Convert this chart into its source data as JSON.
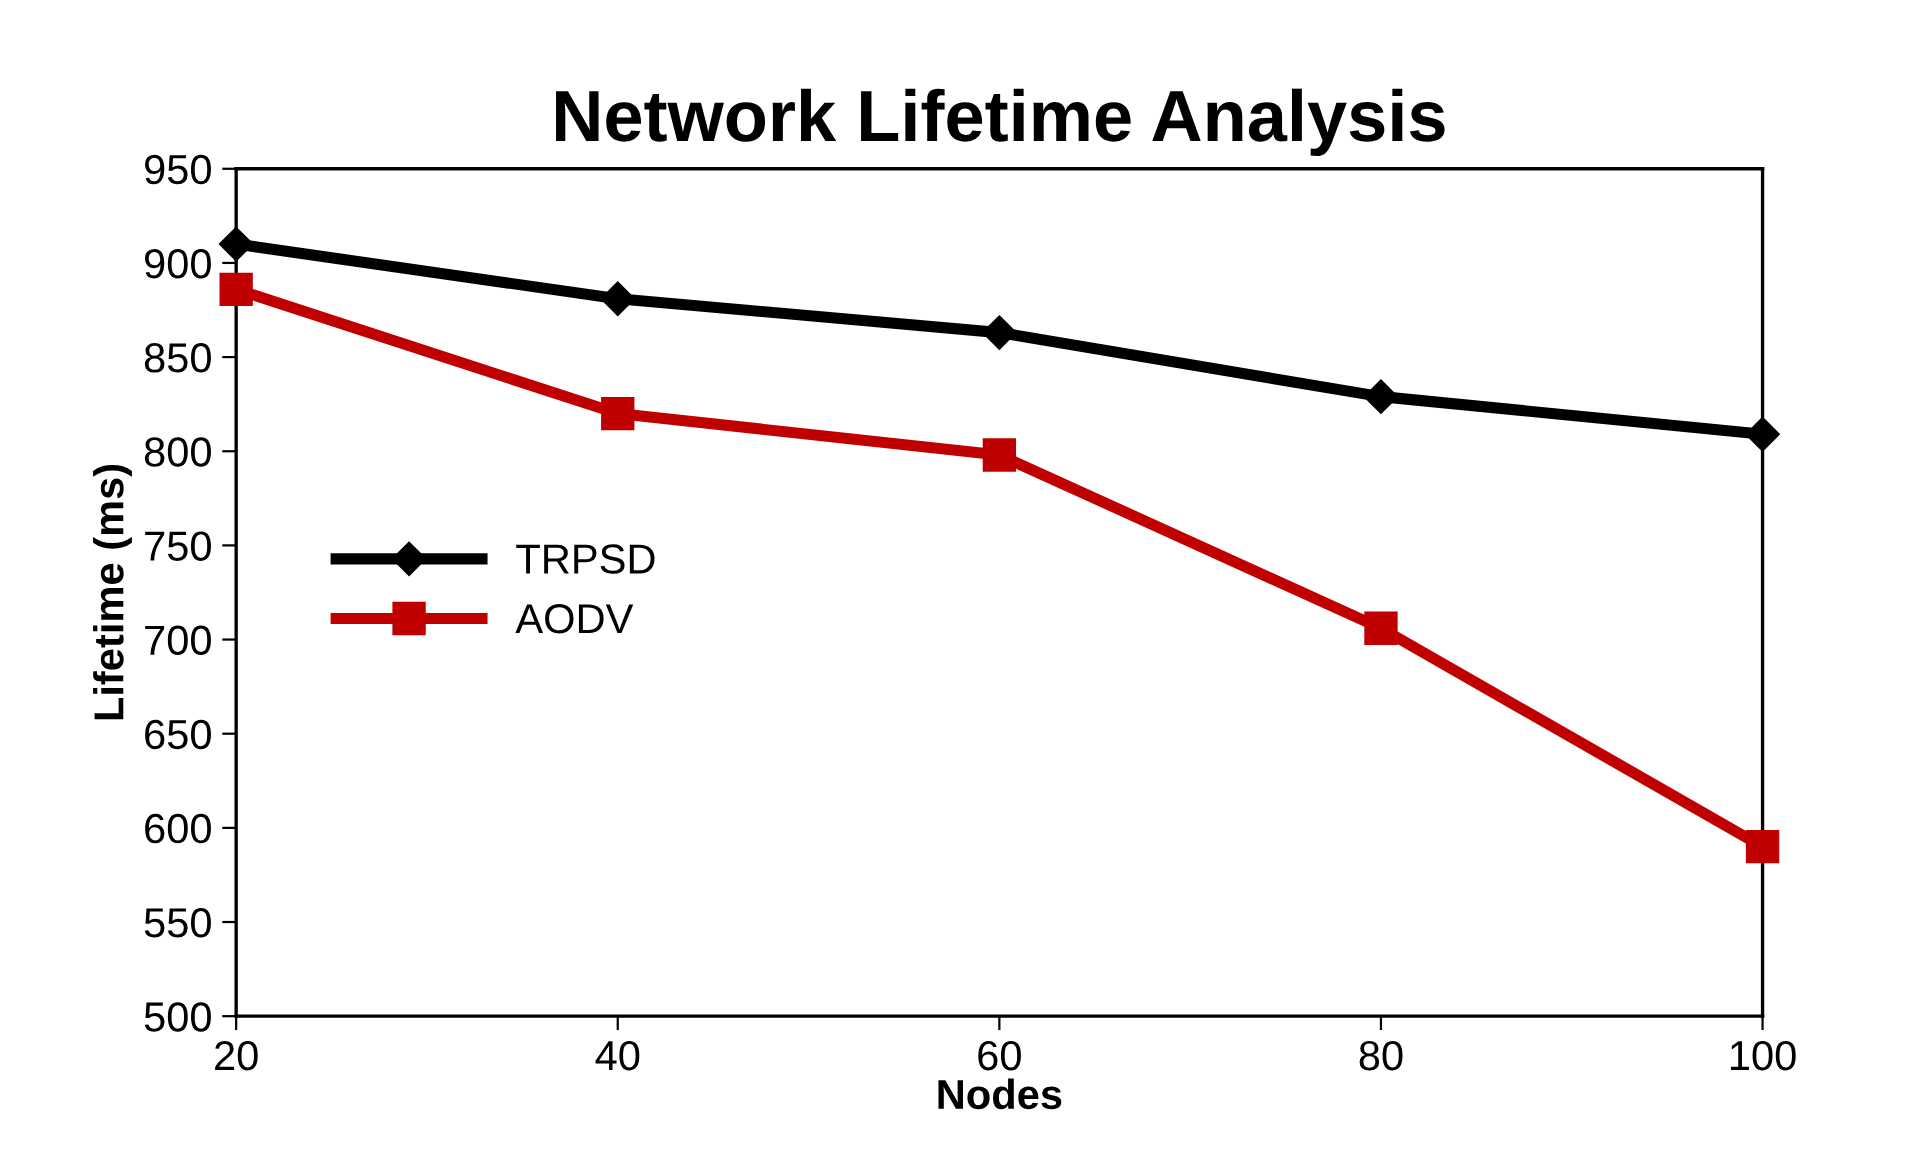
{
  "chart_data": {
    "type": "line",
    "title": "Network Lifetime Analysis",
    "xlabel": "Nodes",
    "ylabel": "Lifetime (ms)",
    "x": [
      20,
      40,
      60,
      80,
      100
    ],
    "series": [
      {
        "name": "TRPSD",
        "color": "#000000",
        "marker": "diamond",
        "values": [
          910,
          881,
          863,
          829,
          809
        ]
      },
      {
        "name": "AODV",
        "color": "#c00000",
        "marker": "square",
        "values": [
          886,
          820,
          798,
          706,
          590
        ]
      }
    ],
    "xlim": [
      20,
      100
    ],
    "xticks": [
      20,
      40,
      60,
      80,
      100
    ],
    "ylim": [
      500,
      950
    ],
    "yticks": [
      500,
      550,
      600,
      650,
      700,
      750,
      800,
      850,
      900,
      950
    ],
    "grid": false,
    "legend": "center left",
    "line_style": "solid"
  }
}
